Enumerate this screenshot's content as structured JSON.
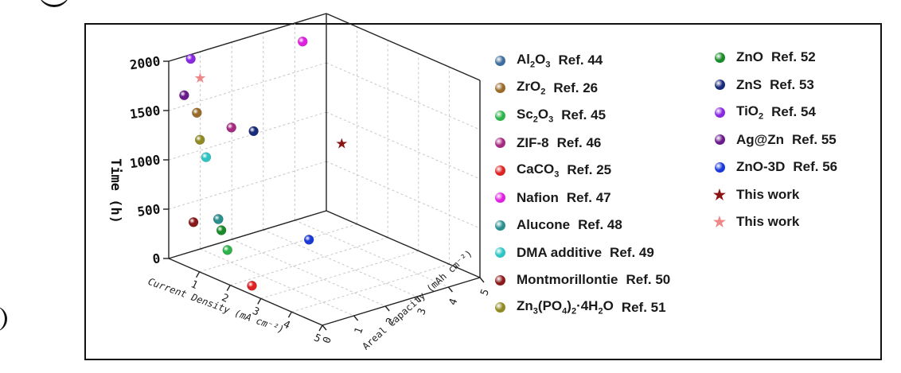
{
  "chart_data": {
    "type": "scatter",
    "zlabel": "Time (h)",
    "xlabel": "Current Density (mA cm⁻²)",
    "ylabel": "Areal Capacity (mAh cm⁻²)",
    "z_ticks": [
      "0",
      "500",
      "1000",
      "1500",
      "2000"
    ],
    "x_ticks": [
      "0",
      "1",
      "2",
      "3",
      "4",
      "5"
    ],
    "y_ticks": [
      "0",
      "1",
      "2",
      "3",
      "4",
      "5"
    ],
    "xlim": [
      0,
      5
    ],
    "ylim": [
      0,
      5
    ],
    "zlim": [
      0,
      2000
    ],
    "points": [
      {
        "name": "Al2O3 Ref. 44",
        "x": 1.1,
        "y": 0.5,
        "z": 500,
        "color": "#3e6c9c",
        "marker": "ball"
      },
      {
        "name": "ZrO2 Ref. 26",
        "x": 0.3,
        "y": 0.6,
        "z": 1460,
        "color": "#9a6a2a",
        "marker": "ball"
      },
      {
        "name": "Sc2O3 Ref. 45",
        "x": 1.5,
        "y": 0.4,
        "z": 250,
        "color": "#2eb24a",
        "marker": "ball"
      },
      {
        "name": "ZIF-8 Ref. 46",
        "x": 0.5,
        "y": 1.5,
        "z": 1250,
        "color": "#a62a80",
        "marker": "ball"
      },
      {
        "name": "CaCO3 Ref. 25",
        "x": 2.4,
        "y": 0.3,
        "z": 20,
        "color": "#dd2222",
        "marker": "ball"
      },
      {
        "name": "Nafion Ref. 47",
        "x": 0.05,
        "y": 4.2,
        "z": 1800,
        "color": "#e020e0",
        "marker": "ball"
      },
      {
        "name": "Alucone Ref. 48",
        "x": 1.1,
        "y": 0.5,
        "z": 500,
        "color": "#2a8f8f",
        "marker": "ball"
      },
      {
        "name": "DMA additive Ref. 49",
        "x": 0.6,
        "y": 0.6,
        "z": 1050,
        "color": "#2ec4c4",
        "marker": "ball"
      },
      {
        "name": "Montmorillontie Ref. 50",
        "x": 0.6,
        "y": 0.2,
        "z": 430,
        "color": "#8a1a1a",
        "marker": "ball"
      },
      {
        "name": "Zn3(PO4)2·4H2O Ref. 51",
        "x": 0.4,
        "y": 0.6,
        "z": 1200,
        "color": "#8f8a22",
        "marker": "ball"
      },
      {
        "name": "ZnO Ref. 52",
        "x": 1.2,
        "y": 0.5,
        "z": 400,
        "color": "#1a8a2a",
        "marker": "ball"
      },
      {
        "name": "ZnS Ref. 53",
        "x": 0.3,
        "y": 2.4,
        "z": 1100,
        "color": "#1a2a7a",
        "marker": "ball"
      },
      {
        "name": "TiO2 Ref. 54",
        "x": 0.1,
        "y": 0.6,
        "z": 1980,
        "color": "#8a2ae0",
        "marker": "ball"
      },
      {
        "name": "Ag@Zn Ref. 55",
        "x": 0.4,
        "y": 0.1,
        "z": 1700,
        "color": "#6a1a8a",
        "marker": "ball"
      },
      {
        "name": "ZnO-3D Ref. 56",
        "x": 2.0,
        "y": 2.5,
        "z": 220,
        "color": "#1a3ad8",
        "marker": "ball"
      },
      {
        "name": "This work",
        "x": 0.5,
        "y": 5.0,
        "z": 750,
        "color": "#8a1414",
        "marker": "star"
      },
      {
        "name": "This work",
        "x": 0.2,
        "y": 0.8,
        "z": 1780,
        "color": "#ee8888",
        "marker": "star"
      }
    ]
  },
  "legend": {
    "col1": [
      {
        "formula": [
          "Al",
          "2",
          "O",
          "3"
        ],
        "ref": "Ref. 44",
        "color": "#3e6c9c",
        "marker": "ball"
      },
      {
        "formula": [
          "ZrO",
          "2"
        ],
        "ref": "Ref. 26",
        "color": "#9a6a2a",
        "marker": "ball"
      },
      {
        "formula": [
          "Sc",
          "2",
          "O",
          "3"
        ],
        "ref": "Ref. 45",
        "color": "#2eb24a",
        "marker": "ball"
      },
      {
        "formula": [
          "ZIF-8"
        ],
        "ref": "Ref. 46",
        "color": "#a62a80",
        "marker": "ball"
      },
      {
        "formula": [
          "CaCO",
          "3"
        ],
        "ref": "Ref. 25",
        "color": "#dd2222",
        "marker": "ball"
      },
      {
        "formula": [
          "Nafion"
        ],
        "ref": "Ref. 47",
        "color": "#e020e0",
        "marker": "ball"
      },
      {
        "formula": [
          "Alucone"
        ],
        "ref": "Ref. 48",
        "color": "#2a8f8f",
        "marker": "ball"
      },
      {
        "formula": [
          "DMA additive"
        ],
        "ref": "Ref. 49",
        "color": "#2ec4c4",
        "marker": "ball"
      },
      {
        "formula": [
          "Montmorillontie"
        ],
        "ref": "Ref. 50",
        "color": "#8a1a1a",
        "marker": "ball"
      },
      {
        "formula": [
          "Zn",
          "3",
          "(PO",
          "4",
          ")",
          "2",
          "·4H",
          "2",
          "O"
        ],
        "ref": "Ref. 51",
        "color": "#8f8a22",
        "marker": "ball"
      }
    ],
    "col2": [
      {
        "formula": [
          "ZnO"
        ],
        "ref": "Ref. 52",
        "color": "#1a8a2a",
        "marker": "ball"
      },
      {
        "formula": [
          "ZnS"
        ],
        "ref": "Ref. 53",
        "color": "#1a2a7a",
        "marker": "ball"
      },
      {
        "formula": [
          "TiO",
          "2"
        ],
        "ref": "Ref. 54",
        "color": "#8a2ae0",
        "marker": "ball"
      },
      {
        "formula": [
          "Ag@Zn"
        ],
        "ref": "Ref. 55",
        "color": "#6a1a8a",
        "marker": "ball"
      },
      {
        "formula": [
          "ZnO-3D"
        ],
        "ref": "Ref. 56",
        "color": "#1a3ad8",
        "marker": "ball"
      },
      {
        "formula": [
          "This work"
        ],
        "ref": "",
        "color": "#8a1414",
        "marker": "star"
      },
      {
        "formula": [
          "This work"
        ],
        "ref": "",
        "color": "#ee8888",
        "marker": "star"
      }
    ]
  }
}
